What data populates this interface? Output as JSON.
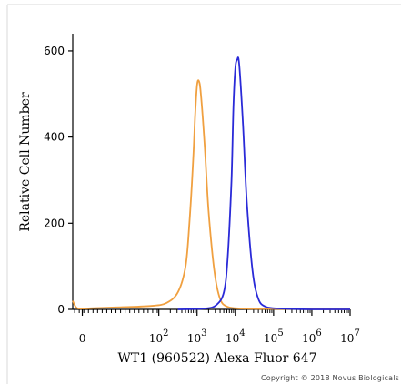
{
  "chart_data": {
    "type": "line",
    "title": "",
    "xlabel": "WT1 (960522) Alexa Fluor 647",
    "ylabel": "Relative Cell Number",
    "xscale": "log",
    "xlim": [
      -0.25,
      7.0
    ],
    "ylim": [
      0,
      640
    ],
    "x_ticks": [
      {
        "base": "0",
        "exp": ""
      },
      {
        "base": "10",
        "exp": "2"
      },
      {
        "base": "10",
        "exp": "3"
      },
      {
        "base": "10",
        "exp": "4"
      },
      {
        "base": "10",
        "exp": "5"
      },
      {
        "base": "10",
        "exp": "6"
      },
      {
        "base": "10",
        "exp": "7"
      }
    ],
    "y_ticks": [
      "0",
      "200",
      "400",
      "600"
    ],
    "y_tick_values": [
      0,
      200,
      400,
      600
    ],
    "grid": false,
    "legend": false,
    "series": [
      {
        "color": "#f0a040",
        "x": [
          -0.25,
          -0.2,
          -0.1,
          0.3,
          1.0,
          1.8,
          2.2,
          2.5,
          2.7,
          2.8,
          2.9,
          2.95,
          3.0,
          3.05,
          3.1,
          3.2,
          3.3,
          3.45,
          3.6,
          3.8,
          4.2,
          5.0,
          7.0
        ],
        "y": [
          20,
          10,
          2,
          3,
          5,
          8,
          15,
          40,
          100,
          200,
          350,
          450,
          520,
          530,
          500,
          380,
          230,
          90,
          25,
          6,
          2,
          1,
          0
        ]
      },
      {
        "color": "#2a2ad8",
        "x": [
          2.5,
          3.2,
          3.5,
          3.7,
          3.8,
          3.9,
          3.95,
          4.0,
          4.05,
          4.1,
          4.2,
          4.3,
          4.45,
          4.6,
          4.8,
          5.2,
          6.0,
          7.0
        ],
        "y": [
          0,
          2,
          10,
          40,
          120,
          300,
          470,
          560,
          580,
          570,
          430,
          250,
          90,
          25,
          6,
          2,
          0,
          0
        ]
      }
    ]
  },
  "copyright": "Copyright © 2018 Novus Biologicals"
}
